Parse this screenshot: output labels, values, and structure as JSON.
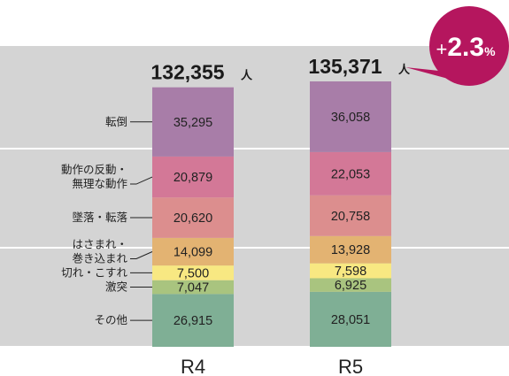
{
  "chart_data": {
    "type": "stacked-bar",
    "categories": [
      "R4",
      "R5"
    ],
    "totals": [
      "132,355",
      "135,371"
    ],
    "total_unit": "人",
    "series": [
      {
        "name": "その他",
        "values": [
          26915,
          28051
        ],
        "labels": [
          "26,915",
          "28,051"
        ],
        "color": "#7faf95"
      },
      {
        "name": "激突",
        "values": [
          7047,
          6925
        ],
        "labels": [
          "7,047",
          "6,925"
        ],
        "color": "#a9c47f"
      },
      {
        "name": "切れ・こすれ",
        "values": [
          7500,
          7598
        ],
        "labels": [
          "7,500",
          "7,598"
        ],
        "color": "#f8e882"
      },
      {
        "name": "はさまれ・巻き込まれ",
        "values": [
          14099,
          13928
        ],
        "labels": [
          "14,099",
          "13,928"
        ],
        "color": "#e3b372"
      },
      {
        "name": "墜落・転落",
        "values": [
          20620,
          20758
        ],
        "labels": [
          "20,620",
          "20,758"
        ],
        "color": "#dc8e8e"
      },
      {
        "name": "動作の反動・無理な動作",
        "values": [
          20879,
          22053
        ],
        "labels": [
          "20,879",
          "22,053"
        ],
        "color": "#d37897"
      },
      {
        "name": "転倒",
        "values": [
          35295,
          36058
        ],
        "labels": [
          "35,295",
          "36,058"
        ],
        "color": "#a87da8"
      }
    ],
    "category_labels": [
      {
        "lines": [
          "転倒"
        ]
      },
      {
        "lines": [
          "動作の反動・",
          "無理な動作"
        ]
      },
      {
        "lines": [
          "墜落・転落"
        ]
      },
      {
        "lines": [
          "はさまれ・",
          "巻き込まれ"
        ]
      },
      {
        "lines": [
          "切れ・こすれ"
        ]
      },
      {
        "lines": [
          "激突"
        ]
      },
      {
        "lines": [
          "その他"
        ]
      }
    ],
    "badge": {
      "sign": "+",
      "value": "2.3",
      "unit": "%",
      "color": "#b5165e"
    },
    "colors": {
      "panel": "#d4d4d4",
      "grid": "#ffffff"
    },
    "grid": true
  }
}
